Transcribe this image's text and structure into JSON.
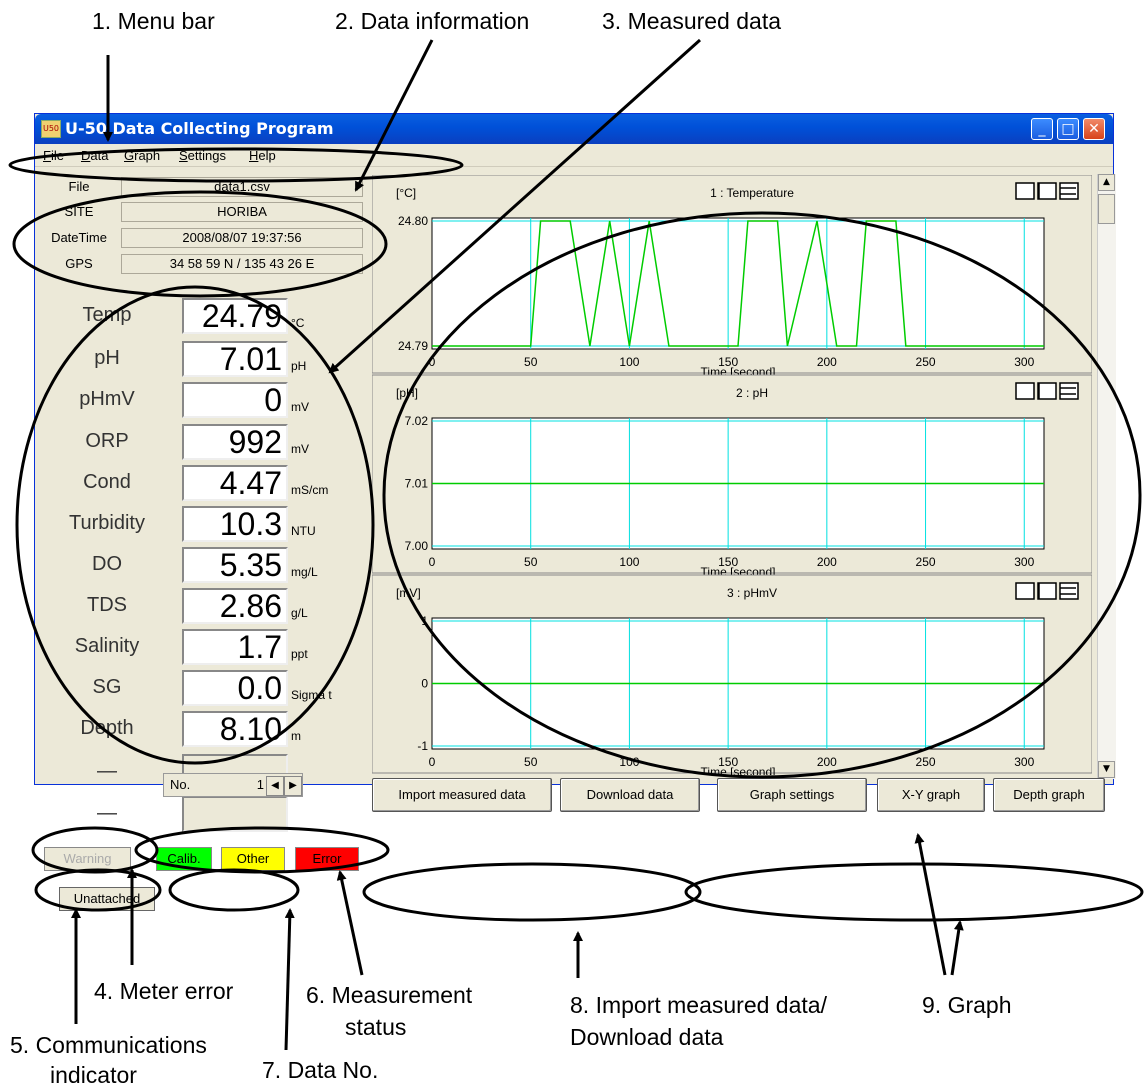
{
  "callouts": {
    "c1": "1. Menu bar",
    "c2": "2. Data information",
    "c3": "3. Measured data",
    "c4": "4. Meter error",
    "c5_line1": "5. Communications",
    "c5_line2": "indicator",
    "c6_line1": "6. Measurement",
    "c6_line2": "status",
    "c7": "7. Data No.",
    "c8_line1": "8. Import measured data/",
    "c8_line2": "Download data",
    "c9": "9. Graph"
  },
  "window": {
    "title": "U-50 Data Collecting Program",
    "minimize": "_",
    "maximize": "□",
    "close": "✕",
    "icon": "app-icon"
  },
  "menu": [
    {
      "label": "File",
      "accel": "F",
      "rest": "ile"
    },
    {
      "label": "Data",
      "accel": "D",
      "rest": "ata"
    },
    {
      "label": "Graph",
      "accel": "G",
      "rest": "raph"
    },
    {
      "label": "Settings",
      "accel": "S",
      "rest": "ettings"
    },
    {
      "label": "Help",
      "accel": "H",
      "rest": "elp"
    }
  ],
  "info": {
    "file_label": "File",
    "file_value": "data1.csv",
    "site_label": "SITE",
    "site_value": "HORIBA",
    "datetime_label": "DateTime",
    "datetime_value": "2008/08/07 19:37:56",
    "gps_label": "GPS",
    "gps_value": "34 58 59 N / 135 43 26 E"
  },
  "measurements": [
    {
      "label": "Temp",
      "value": "24.79",
      "unit": "°C"
    },
    {
      "label": "pH",
      "value": "7.01",
      "unit": "pH"
    },
    {
      "label": "pHmV",
      "value": "0",
      "unit": "mV"
    },
    {
      "label": "ORP",
      "value": "992",
      "unit": "mV"
    },
    {
      "label": "Cond",
      "value": "4.47",
      "unit": "mS/cm"
    },
    {
      "label": "Turbidity",
      "value": "10.3",
      "unit": "NTU"
    },
    {
      "label": "DO",
      "value": "5.35",
      "unit": "mg/L"
    },
    {
      "label": "TDS",
      "value": "2.86",
      "unit": "g/L"
    },
    {
      "label": "Salinity",
      "value": "1.7",
      "unit": "ppt"
    },
    {
      "label": "SG",
      "value": "0.0",
      "unit": "Sigma t"
    },
    {
      "label": "Depth",
      "value": "8.10",
      "unit": "m"
    },
    {
      "label": "—",
      "value": "",
      "unit": ""
    },
    {
      "label": "—",
      "value": "",
      "unit": ""
    }
  ],
  "status": {
    "warning": "Warning",
    "calib": "Calib.",
    "other": "Other",
    "error": "Error",
    "calib_color": "#00ff00",
    "other_color": "#ffff00",
    "error_color": "#ff0000"
  },
  "footer": {
    "comm": "Unattached",
    "no_label": "No.",
    "no_value": "1",
    "prev": "◀",
    "next": "▶",
    "import": "Import measured data",
    "download": "Download data",
    "graph_settings": "Graph settings",
    "xy_graph": "X-Y graph",
    "depth_graph": "Depth graph"
  },
  "chart_data": [
    {
      "type": "line",
      "title": "1 : Temperature",
      "unit": "[°C]",
      "xlabel": "Time [second]",
      "x_ticks": [
        0,
        50,
        100,
        150,
        200,
        250,
        300
      ],
      "y_ticks": [
        "24.80",
        "24.79"
      ],
      "ylim": [
        24.79,
        24.8
      ],
      "xlim": [
        0,
        310
      ],
      "line_color": "#00cc00",
      "grid_color": "#00e0e0",
      "series": [
        {
          "x": [
            0,
            50,
            55,
            70,
            80,
            90,
            100,
            110,
            120,
            155,
            160,
            175,
            180,
            195,
            205,
            210,
            215,
            220,
            235,
            240,
            300,
            310
          ],
          "y": [
            24.79,
            24.79,
            24.8,
            24.8,
            24.79,
            24.8,
            24.79,
            24.8,
            24.79,
            24.79,
            24.8,
            24.8,
            24.79,
            24.8,
            24.79,
            24.79,
            24.79,
            24.8,
            24.8,
            24.79,
            24.79,
            24.79
          ]
        }
      ]
    },
    {
      "type": "line",
      "title": "2 : pH",
      "unit": "[pH]",
      "xlabel": "Time [second]",
      "x_ticks": [
        0,
        50,
        100,
        150,
        200,
        250,
        300
      ],
      "y_ticks": [
        "7.02",
        "7.01",
        "7.00"
      ],
      "ylim": [
        7.0,
        7.02
      ],
      "xlim": [
        0,
        310
      ],
      "line_color": "#00cc00",
      "grid_color": "#00e0e0",
      "series": [
        {
          "x": [
            0,
            310
          ],
          "y": [
            7.01,
            7.01
          ]
        }
      ]
    },
    {
      "type": "line",
      "title": "3 : pHmV",
      "unit": "[mV]",
      "xlabel": "Time [second]",
      "x_ticks": [
        0,
        50,
        100,
        150,
        200,
        250,
        300
      ],
      "y_ticks": [
        "1",
        "0",
        "-1"
      ],
      "ylim": [
        -1,
        1
      ],
      "xlim": [
        0,
        310
      ],
      "line_color": "#00cc00",
      "grid_color": "#00e0e0",
      "series": [
        {
          "x": [
            0,
            310
          ],
          "y": [
            0,
            0
          ]
        }
      ]
    }
  ]
}
